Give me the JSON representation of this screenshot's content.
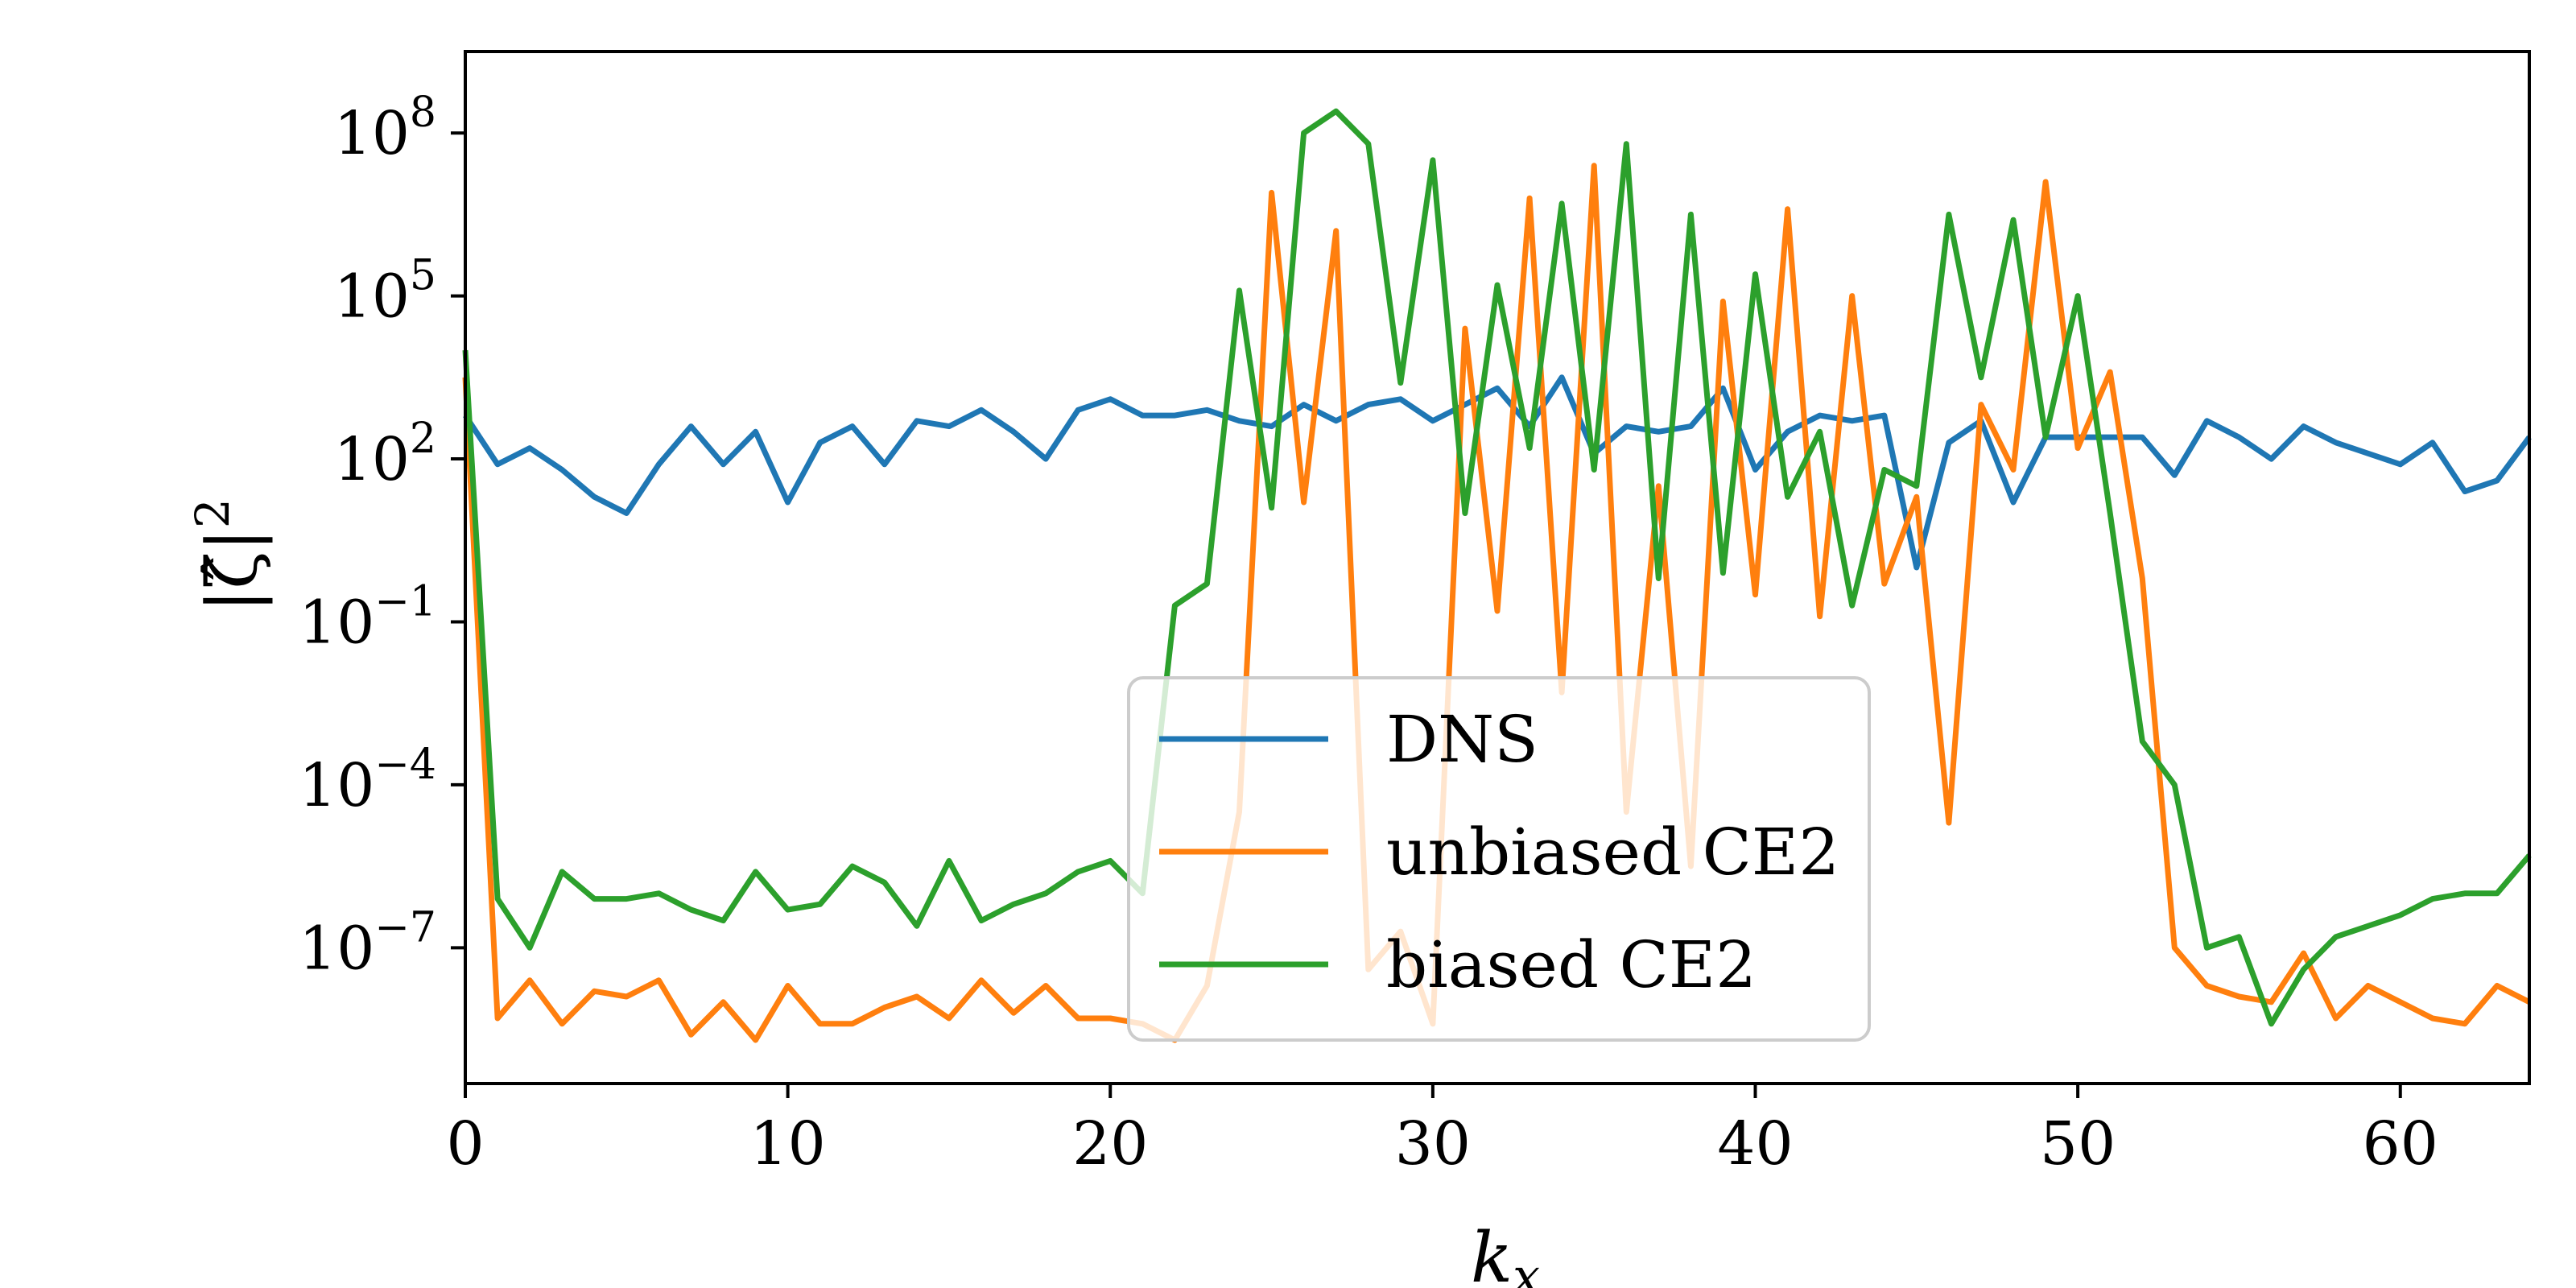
{
  "chart_data": {
    "type": "line",
    "xlabel": "k",
    "xlabel_sub": "x",
    "ylabel": "|ζ̂|",
    "ylabel_sup": "2",
    "xlim": [
      0,
      64
    ],
    "ylim_log10": [
      -9.5,
      9.5
    ],
    "yscale": "log",
    "xticks": [
      0,
      10,
      20,
      30,
      40,
      50,
      60
    ],
    "yticks": [
      {
        "exp": 8,
        "base": "10",
        "sup": "8"
      },
      {
        "exp": 5,
        "base": "10",
        "sup": "5"
      },
      {
        "exp": 2,
        "base": "10",
        "sup": "2"
      },
      {
        "exp": -1,
        "base": "10",
        "sup": "−1"
      },
      {
        "exp": -4,
        "base": "10",
        "sup": "−4"
      },
      {
        "exp": -7,
        "base": "10",
        "sup": "−7"
      }
    ],
    "grid": false,
    "legend_position": "lower-center",
    "series": [
      {
        "name": "DNS",
        "color": "#1f77b4",
        "log10_values": [
          2.8,
          1.9,
          2.2,
          1.8,
          1.3,
          1.0,
          1.9,
          2.6,
          1.9,
          2.5,
          1.2,
          2.3,
          2.6,
          1.9,
          2.7,
          2.6,
          2.9,
          2.5,
          2.0,
          2.9,
          3.1,
          2.8,
          2.8,
          2.9,
          2.7,
          2.6,
          3.0,
          2.7,
          3.0,
          3.1,
          2.7,
          3.0,
          3.3,
          2.6,
          3.5,
          2.1,
          2.6,
          2.5,
          2.6,
          3.3,
          1.8,
          2.5,
          2.8,
          2.7,
          2.8,
          0.0,
          2.3,
          2.7,
          1.2,
          2.4,
          2.4,
          2.4,
          2.4,
          1.7,
          2.7,
          2.4,
          2.0,
          2.6,
          2.3,
          2.1,
          1.9,
          2.3,
          1.4,
          1.6,
          2.4
        ]
      },
      {
        "name": "unbiased CE2",
        "color": "#ff7f0e",
        "log10_values": [
          3.5,
          -8.3,
          -7.6,
          -8.4,
          -7.8,
          -7.9,
          -7.6,
          -8.6,
          -8.0,
          -8.7,
          -7.7,
          -8.4,
          -8.4,
          -8.1,
          -7.9,
          -8.3,
          -7.6,
          -8.2,
          -7.7,
          -8.3,
          -8.3,
          -8.4,
          -8.7,
          -7.7,
          -4.5,
          6.9,
          1.2,
          6.2,
          -7.4,
          -6.7,
          -8.4,
          4.4,
          -0.8,
          6.8,
          -2.3,
          7.4,
          -4.5,
          1.5,
          -5.5,
          4.9,
          -0.5,
          6.6,
          -0.9,
          5.0,
          -0.3,
          1.3,
          -4.7,
          3.0,
          1.8,
          7.1,
          2.2,
          3.6,
          -0.2,
          -7.0,
          -7.7,
          -7.9,
          -8.0,
          -7.1,
          -8.3,
          -7.7,
          -8.0,
          -8.3,
          -8.4,
          -7.7,
          -8.0
        ]
      },
      {
        "name": "biased CE2",
        "color": "#2ca02c",
        "log10_values": [
          4.0,
          -6.1,
          -7.0,
          -5.6,
          -6.1,
          -6.1,
          -6.0,
          -6.3,
          -6.5,
          -5.6,
          -6.3,
          -6.2,
          -5.5,
          -5.8,
          -6.6,
          -5.4,
          -6.5,
          -6.2,
          -6.0,
          -5.6,
          -5.4,
          -6.0,
          -0.7,
          -0.3,
          5.1,
          1.1,
          8.0,
          8.4,
          7.8,
          3.4,
          7.5,
          1.0,
          5.2,
          2.2,
          6.7,
          1.8,
          7.8,
          -0.2,
          6.5,
          -0.1,
          5.4,
          1.3,
          2.5,
          -0.7,
          1.8,
          1.5,
          6.5,
          3.5,
          6.4,
          2.4,
          5.0,
          1.0,
          -3.2,
          -4.0,
          -7.0,
          -6.8,
          -8.4,
          -7.4,
          -6.8,
          -6.6,
          -6.4,
          -6.1,
          -6.0,
          -6.0,
          -5.3
        ]
      }
    ]
  }
}
